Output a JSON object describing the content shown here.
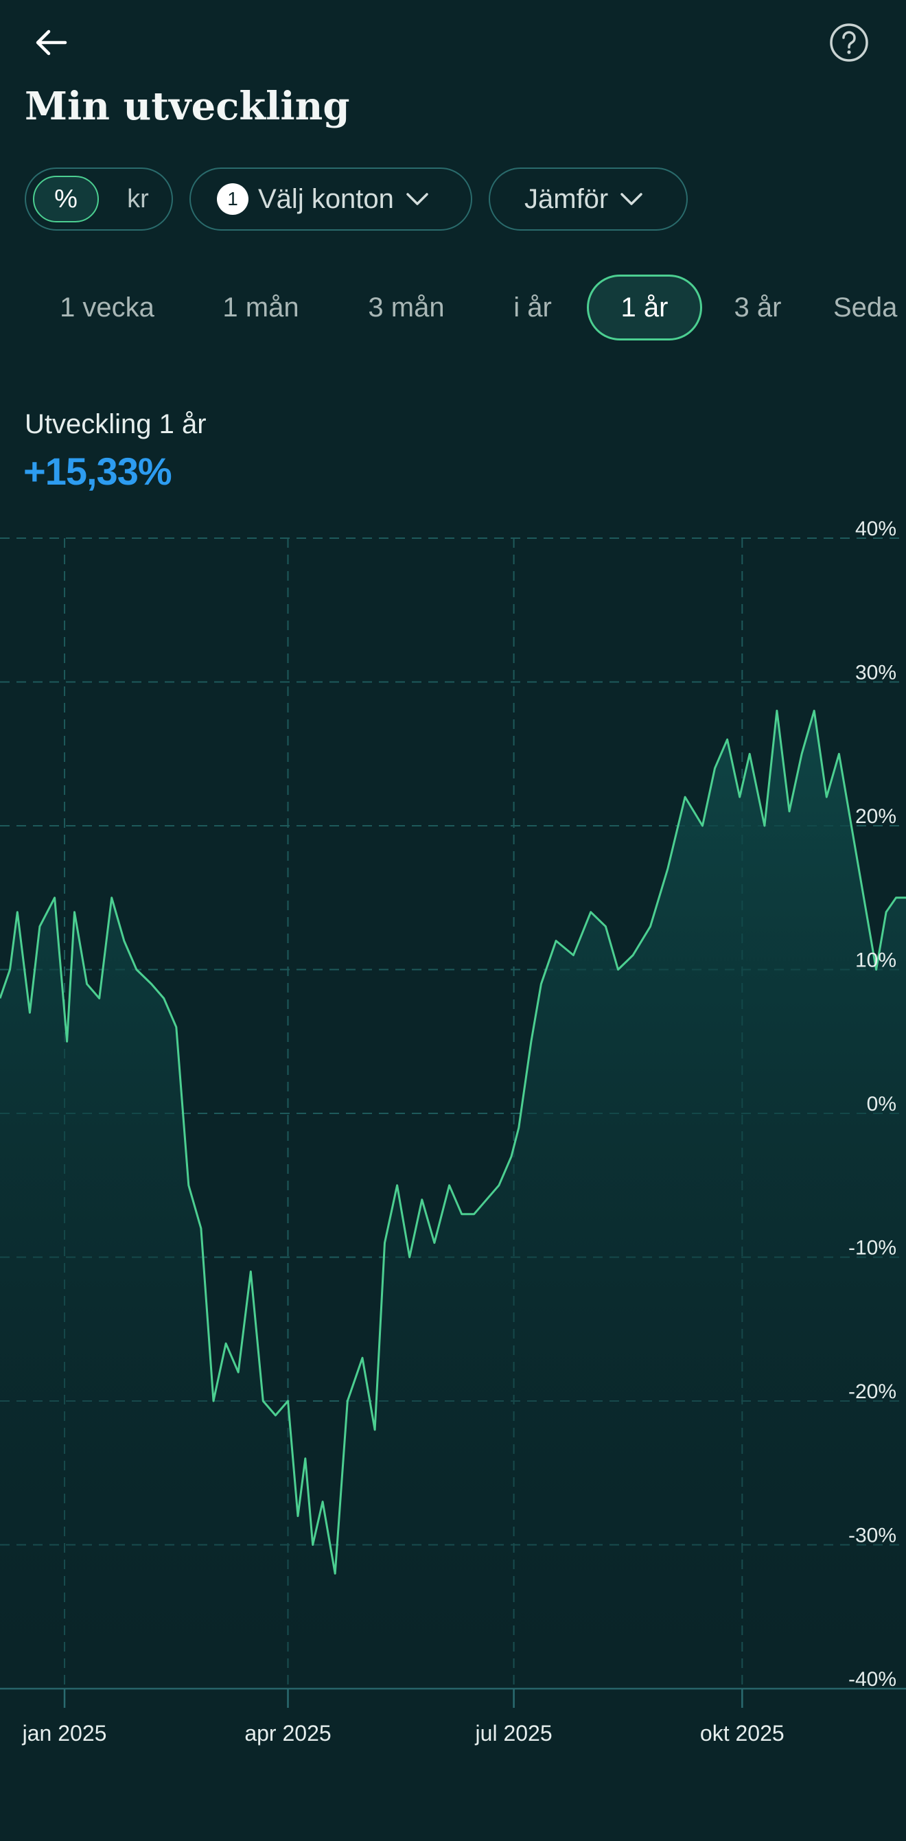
{
  "header": {
    "title": "Min utveckling"
  },
  "toolbar": {
    "unit_options": [
      "%",
      "kr"
    ],
    "unit_selected": "%",
    "accounts_count": "1",
    "accounts_label": "Välj konton",
    "compare_label": "Jämför"
  },
  "periods": [
    {
      "label": "1 vecka"
    },
    {
      "label": "1 mån"
    },
    {
      "label": "3 mån"
    },
    {
      "label": "i år"
    },
    {
      "label": "1 år"
    },
    {
      "label": "3 år"
    },
    {
      "label": "Seda"
    }
  ],
  "selected_period": "1 år",
  "summary": {
    "label": "Utveckling 1 år",
    "value": "+15,33%"
  },
  "colors": {
    "background": "#0a2428",
    "accent_green": "#4ccf91",
    "value_blue": "#2d9cf0",
    "grid": "#1e5a5b"
  },
  "chart_data": {
    "type": "area",
    "ylim": [
      -40,
      40
    ],
    "yticks": [
      "40%",
      "30%",
      "20%",
      "10%",
      "0%",
      "-10%",
      "-20%",
      "-30%",
      "-40%"
    ],
    "xticks": [
      "jan 2025",
      "apr 2025",
      "jul 2025",
      "okt 2025"
    ],
    "y_unit": "%",
    "grid": true,
    "x_range": [
      "2024-12-06",
      "2025-12-06"
    ],
    "x": [
      "2024-12-06",
      "2024-12-10",
      "2024-12-13",
      "2024-12-18",
      "2024-12-22",
      "2024-12-28",
      "2025-01-02",
      "2025-01-05",
      "2025-01-10",
      "2025-01-15",
      "2025-01-20",
      "2025-01-25",
      "2025-01-30",
      "2025-02-05",
      "2025-02-10",
      "2025-02-15",
      "2025-02-20",
      "2025-02-25",
      "2025-03-02",
      "2025-03-07",
      "2025-03-12",
      "2025-03-17",
      "2025-03-22",
      "2025-03-27",
      "2025-04-01",
      "2025-04-05",
      "2025-04-08",
      "2025-04-11",
      "2025-04-15",
      "2025-04-20",
      "2025-04-25",
      "2025-05-01",
      "2025-05-06",
      "2025-05-10",
      "2025-05-15",
      "2025-05-20",
      "2025-05-25",
      "2025-05-30",
      "2025-06-05",
      "2025-06-10",
      "2025-06-15",
      "2025-06-20",
      "2025-06-25",
      "2025-06-30",
      "2025-07-03",
      "2025-07-08",
      "2025-07-12",
      "2025-07-18",
      "2025-07-25",
      "2025-08-01",
      "2025-08-07",
      "2025-08-12",
      "2025-08-18",
      "2025-08-25",
      "2025-09-01",
      "2025-09-08",
      "2025-09-15",
      "2025-09-20",
      "2025-09-25",
      "2025-09-30",
      "2025-10-04",
      "2025-10-10",
      "2025-10-15",
      "2025-10-20",
      "2025-10-25",
      "2025-10-30",
      "2025-11-04",
      "2025-11-09",
      "2025-11-14",
      "2025-11-19",
      "2025-11-24",
      "2025-11-28",
      "2025-12-02",
      "2025-12-06"
    ],
    "series": [
      {
        "values": [
          8,
          10,
          14,
          7,
          13,
          15,
          5,
          14,
          9,
          8,
          15,
          12,
          10,
          9,
          8,
          6,
          -5,
          -8,
          -20,
          -16,
          -18,
          -11,
          -20,
          -21,
          -20,
          -28,
          -24,
          -30,
          -27,
          -32,
          -20,
          -17,
          -22,
          -9,
          -5,
          -10,
          -6,
          -9,
          -5,
          -7,
          -7,
          -6,
          -5,
          -3,
          -1,
          5,
          9,
          12,
          11,
          14,
          13,
          10,
          11,
          13,
          17,
          22,
          20,
          24,
          26,
          22,
          25,
          20,
          28,
          21,
          25,
          28,
          22,
          25,
          20,
          15,
          10,
          14,
          15,
          15
        ]
      }
    ]
  }
}
